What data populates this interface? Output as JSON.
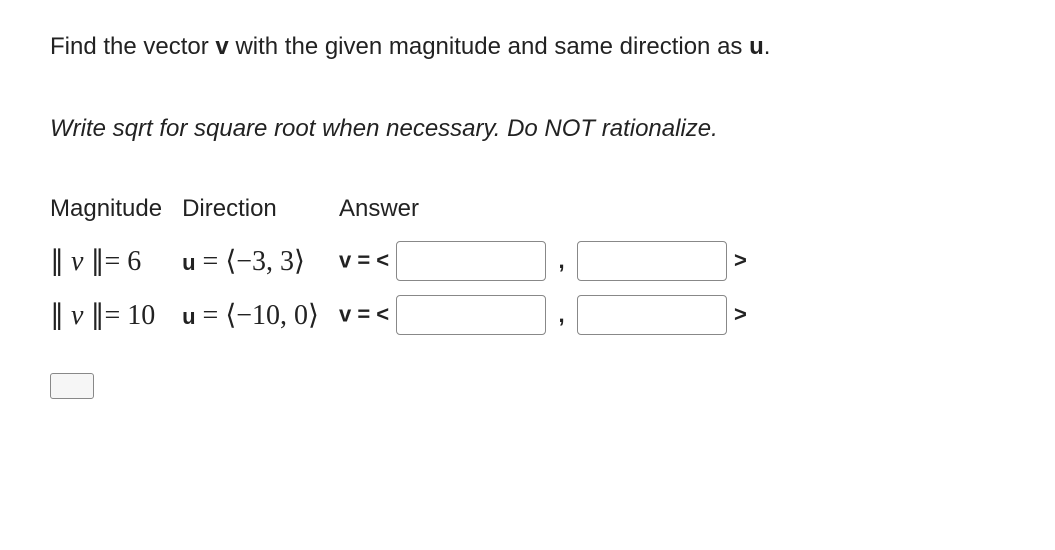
{
  "prompt": {
    "pre": "Find the vector ",
    "v": "v",
    "mid": " with the given magnitude and same direction as ",
    "u": "u",
    "post": "."
  },
  "instruction": "Write sqrt for square root when necessary. Do NOT rationalize.",
  "headers": {
    "magnitude": "Magnitude",
    "direction": "Direction",
    "answer": "Answer"
  },
  "rows": [
    {
      "magnitude": "∥ v ∥= 6",
      "direction_lhs": "u = ",
      "direction_vec": "⟨−3, 3⟩",
      "answer_prefix": "v = ",
      "open": "<",
      "comma": ",",
      "close": ">",
      "val1": "",
      "val2": ""
    },
    {
      "magnitude": "∥ v ∥= 10",
      "direction_lhs": "u = ",
      "direction_vec": "⟨−10, 0⟩",
      "answer_prefix": "v = ",
      "open": "<",
      "comma": ",",
      "close": ">",
      "val1": "",
      "val2": ""
    }
  ],
  "colors": {
    "text": "#222222",
    "border": "#888888",
    "background": "#ffffff"
  }
}
